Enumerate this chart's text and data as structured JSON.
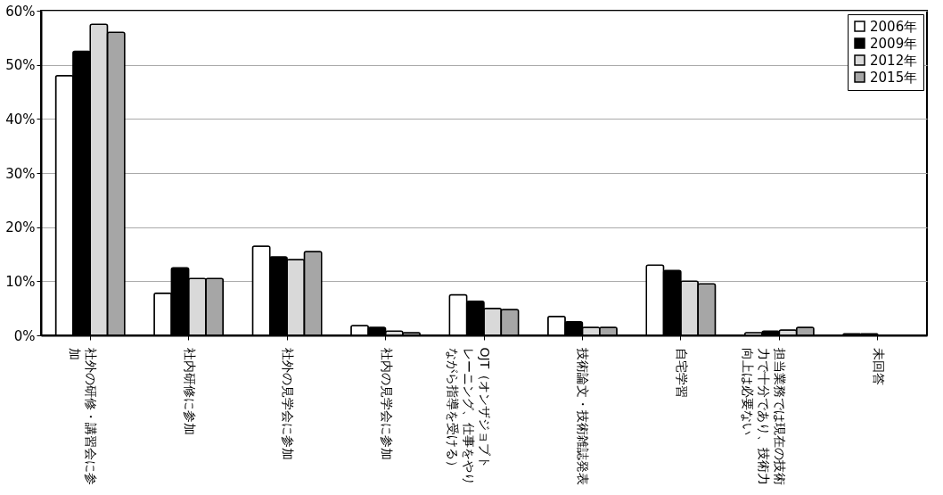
{
  "chart_data": {
    "type": "bar",
    "categories": [
      "社外の研修・講習会に参加",
      "社内研修に参加",
      "社外の見学会に参加",
      "社内の見学会に参加",
      "OJT（オンザジョブトレーニング、仕事をやりながら指導を受ける）",
      "技術論文・技術雑誌発表",
      "自宅学習",
      "担当業務では現在の技術力で十分であり、技術力向上は必要ない",
      "未回答"
    ],
    "series": [
      {
        "name": "2006年",
        "color": "#ffffff",
        "values": [
          48,
          7.8,
          16.5,
          1.8,
          7.5,
          3.5,
          13,
          0.5,
          0.3
        ]
      },
      {
        "name": "2009年",
        "color": "#000000",
        "values": [
          52.5,
          12.5,
          14.5,
          1.5,
          6.3,
          2.5,
          12,
          0.8,
          0.3
        ]
      },
      {
        "name": "2012年",
        "color": "#d9d9d9",
        "values": [
          57.5,
          10.5,
          14,
          0.8,
          5,
          1.5,
          10,
          1,
          null
        ]
      },
      {
        "name": "2015年",
        "color": "#a6a6a6",
        "values": [
          56,
          10.5,
          15.5,
          0.5,
          4.8,
          1.5,
          9.5,
          1.5,
          null
        ]
      }
    ],
    "ylim": [
      0,
      60
    ],
    "yticks": [
      {
        "value": 0,
        "label": "0%"
      },
      {
        "value": 10,
        "label": "10%"
      },
      {
        "value": 20,
        "label": "20%"
      },
      {
        "value": 30,
        "label": "30%"
      },
      {
        "value": 40,
        "label": "40%"
      },
      {
        "value": 50,
        "label": "50%"
      },
      {
        "value": 60,
        "label": "60%"
      }
    ],
    "grid": "y",
    "legend": "top right"
  }
}
